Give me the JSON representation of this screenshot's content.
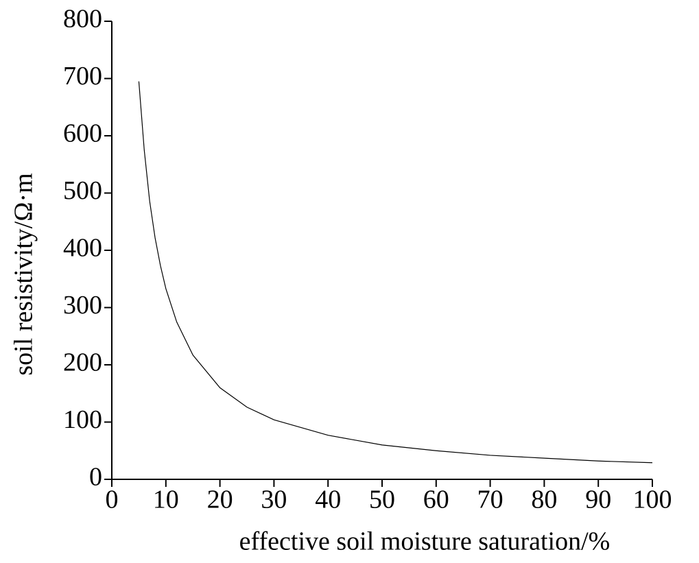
{
  "chart_data": {
    "type": "line",
    "x_label": "effective soil moisture saturation/%",
    "y_label": "soil resistivity/Ω·m",
    "x": [
      5,
      6,
      7,
      8,
      9,
      10,
      12,
      15,
      20,
      25,
      30,
      40,
      50,
      60,
      70,
      80,
      90,
      100
    ],
    "series": [
      {
        "color": "#000000",
        "values": [
          695,
          575,
          486,
          422,
          373,
          333,
          275,
          217,
          160,
          126,
          104,
          77,
          60,
          50,
          42,
          37,
          32,
          29
        ]
      }
    ],
    "xlim": [
      0,
      100
    ],
    "xticks": [
      0,
      10,
      20,
      30,
      40,
      50,
      60,
      70,
      80,
      90,
      100
    ],
    "ylim": [
      0,
      800
    ],
    "yticks": [
      0,
      100,
      200,
      300,
      400,
      500,
      600,
      700,
      800
    ]
  }
}
